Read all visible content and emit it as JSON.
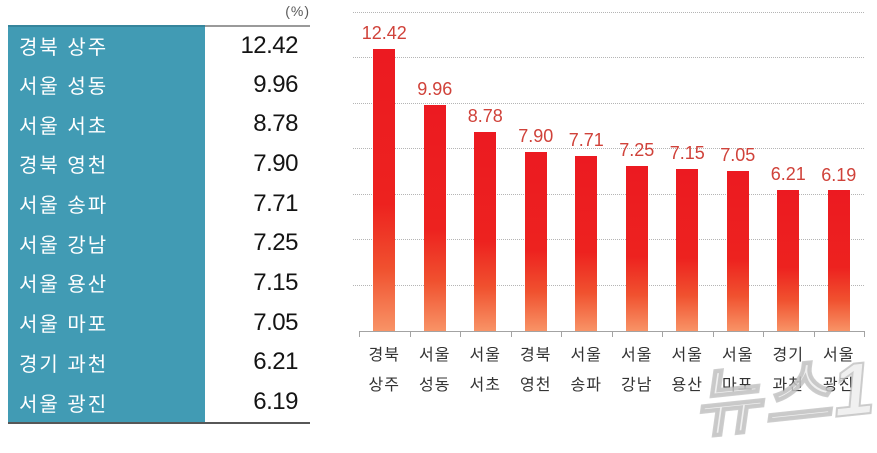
{
  "unit_label": "(%)",
  "watermark": "뉴스1",
  "colors": {
    "table_region_bg": "#419BB4",
    "table_region_text": "#FFFFFF",
    "table_value_text": "#141414",
    "bar_top": "#EC1A21",
    "bar_bottom": "#F89366",
    "bar_label": "#D0423A",
    "gridline": "#B5B5B5",
    "axis": "#A3A3A3",
    "unit_label_text": "#595959"
  },
  "table": {
    "rows": [
      {
        "region": "경북 상주",
        "value": "12.42"
      },
      {
        "region": "서울 성동",
        "value": "9.96"
      },
      {
        "region": "서울 서초",
        "value": "8.78"
      },
      {
        "region": "경북 영천",
        "value": "7.90"
      },
      {
        "region": "서울 송파",
        "value": "7.71"
      },
      {
        "region": "서울 강남",
        "value": "7.25"
      },
      {
        "region": "서울 용산",
        "value": "7.15"
      },
      {
        "region": "서울 마포",
        "value": "7.05"
      },
      {
        "region": "경기 과천",
        "value": "6.21"
      },
      {
        "region": "서울 광진",
        "value": "6.19"
      }
    ]
  },
  "chart_data": {
    "type": "bar",
    "title": "",
    "unit": "%",
    "categories": [
      [
        "경북",
        "상주"
      ],
      [
        "서울",
        "성동"
      ],
      [
        "서울",
        "서초"
      ],
      [
        "경북",
        "영천"
      ],
      [
        "서울",
        "송파"
      ],
      [
        "서울",
        "강남"
      ],
      [
        "서울",
        "용산"
      ],
      [
        "서울",
        "마포"
      ],
      [
        "경기",
        "과천"
      ],
      [
        "서울",
        "광진"
      ]
    ],
    "values": [
      12.42,
      9.96,
      8.78,
      7.9,
      7.71,
      7.25,
      7.15,
      7.05,
      6.21,
      6.19
    ],
    "labels": [
      "12.42",
      "9.96",
      "8.78",
      "7.90",
      "7.71",
      "7.25",
      "7.15",
      "7.05",
      "6.21",
      "6.19"
    ],
    "ylim": [
      0,
      14
    ],
    "gridline_step": 2,
    "grid": "dotted-horizontal",
    "legend": "none",
    "y_axis_labels_visible": false
  }
}
